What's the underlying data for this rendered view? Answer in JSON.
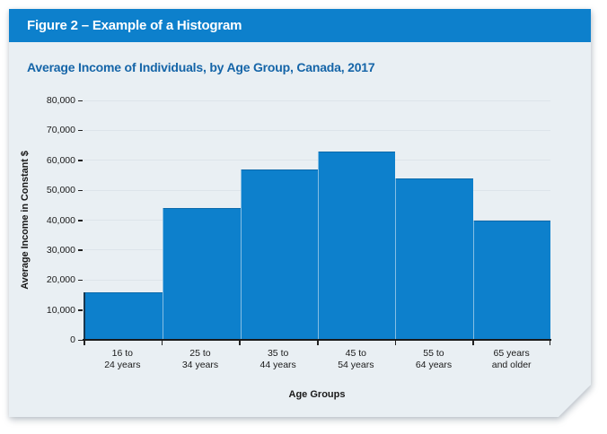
{
  "figure": {
    "title": "Figure 2 – Example of a Histogram"
  },
  "subtitle": "Average Income of Individuals, by Age Group, Canada, 2017",
  "chart_data": {
    "type": "bar",
    "subtype": "histogram",
    "title": "Average Income of Individuals, by Age Group, Canada, 2017",
    "categories": [
      "16 to 24 years",
      "25 to 34 years",
      "35 to 44 years",
      "45 to 54 years",
      "55 to 64 years",
      "65 years and older"
    ],
    "category_label_lines": [
      [
        "16 to",
        "24 years"
      ],
      [
        "25 to",
        "34 years"
      ],
      [
        "35 to",
        "44 years"
      ],
      [
        "45 to",
        "54 years"
      ],
      [
        "55 to",
        "64 years"
      ],
      [
        "65 years",
        "and older"
      ]
    ],
    "values": [
      16000,
      44000,
      57000,
      63000,
      54000,
      40000
    ],
    "xlabel": "Age Groups",
    "ylabel": "Average Income in Constant $",
    "ylim": [
      0,
      80000
    ],
    "ytick_step": 10000,
    "ytick_labels": [
      "0",
      "10,000",
      "20,000",
      "30,000",
      "40,000",
      "50,000",
      "60,000",
      "70,000",
      "80,000"
    ],
    "grid": true,
    "legend": "none",
    "bar_color": "#0d80cc"
  },
  "colors": {
    "header_bg": "#0d80cc",
    "header_text": "#ffffff",
    "card_bg": "#e9eff3",
    "subtitle_text": "#1565a8",
    "axis_text": "#1a1a1a",
    "gridline": "#dde4ea"
  }
}
